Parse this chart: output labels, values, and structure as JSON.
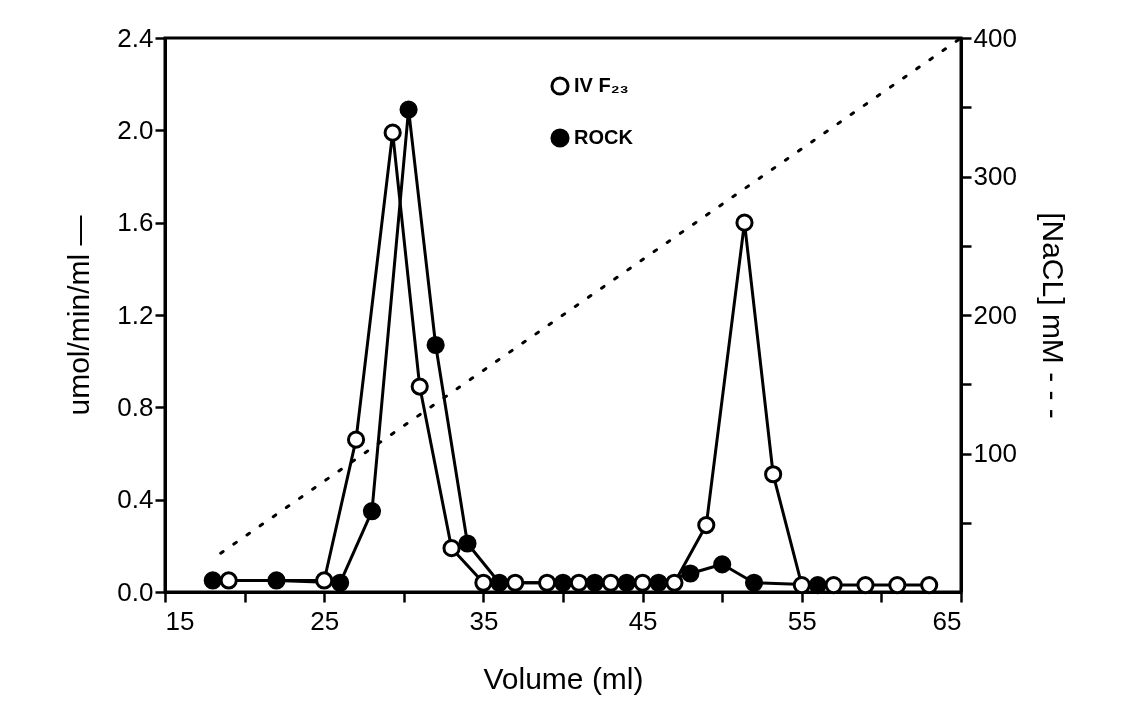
{
  "chart_data": {
    "type": "line",
    "xlabel": "Volume (ml)",
    "ylabel": "umol/min/ml —",
    "y2label": "[NaCL] mM - - -",
    "xlim": [
      15,
      65
    ],
    "xticks": [
      15,
      {
        "value": 20,
        "label": null
      },
      25,
      {
        "value": 30,
        "label": null
      },
      35,
      {
        "value": 40,
        "label": null
      },
      45,
      {
        "value": 50,
        "label": null
      },
      55,
      {
        "value": 60,
        "label": null
      },
      65
    ],
    "ylim": [
      0,
      2.4
    ],
    "yticks": [
      {
        "value": 0,
        "label": "0.0"
      },
      0.4,
      0.8,
      1.2,
      1.6,
      {
        "value": 2,
        "label": "2.0"
      },
      2.4
    ],
    "y2lim": [
      0,
      400
    ],
    "y2ticks": [
      {
        "value": 50,
        "label": null
      },
      100,
      {
        "value": 150,
        "label": null
      },
      200,
      {
        "value": 250,
        "label": null
      },
      300,
      {
        "value": 350,
        "label": null
      },
      400
    ],
    "marker": "circle",
    "legend": "top",
    "grid": false,
    "series": [
      {
        "name": "IV F₂₃",
        "color": "#000000",
        "line_style": "solid",
        "x": [
          19,
          25,
          27,
          29.3,
          31,
          33,
          35,
          37,
          39,
          41,
          43,
          45,
          47,
          49,
          51.4,
          53.2,
          55,
          57,
          59,
          61,
          63
        ],
        "values": [
          0.05,
          0.05,
          0.66,
          1.99,
          0.89,
          0.19,
          0.04,
          0.04,
          0.04,
          0.04,
          0.04,
          0.04,
          0.04,
          0.29,
          1.6,
          0.51,
          0.03,
          0.03,
          0.03,
          0.03,
          0.03
        ]
      },
      {
        "name": "ROCK",
        "color": "#000000",
        "line_style": "solid",
        "x": [
          18,
          22,
          26,
          28,
          30.3,
          32,
          34,
          36,
          40,
          42,
          44,
          46,
          48,
          50,
          52,
          56
        ],
        "values": [
          0.05,
          0.05,
          0.04,
          0.35,
          2.09,
          1.07,
          0.21,
          0.04,
          0.04,
          0.04,
          0.04,
          0.04,
          0.08,
          0.12,
          0.04,
          0.03
        ]
      },
      {
        "type": "line",
        "axis": "y2",
        "color": "#000000",
        "line_style": "dotted",
        "marker": "none",
        "x": [
          18.5,
          65
        ],
        "values": [
          28,
          400
        ]
      }
    ]
  }
}
